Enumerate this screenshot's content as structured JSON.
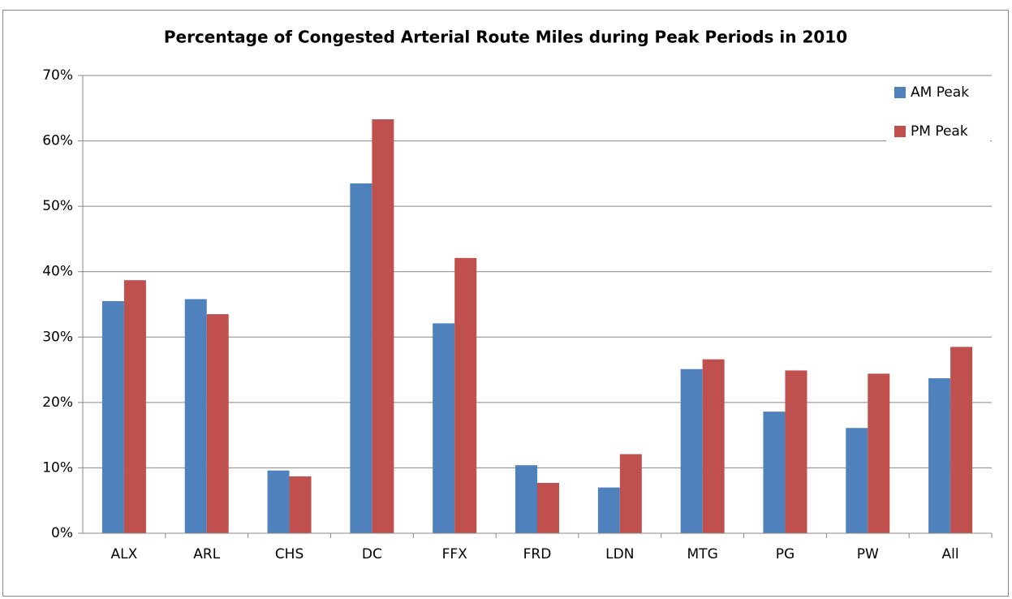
{
  "chart_data": {
    "type": "bar",
    "title": "Percentage of Congested Arterial Route Miles during Peak Periods in 2010",
    "categories": [
      "ALX",
      "ARL",
      "CHS",
      "DC",
      "FFX",
      "FRD",
      "LDN",
      "MTG",
      "PG",
      "PW",
      "All"
    ],
    "series": [
      {
        "name": "AM Peak",
        "color": "#4f81bd",
        "values": [
          35.5,
          35.8,
          9.6,
          53.5,
          32.1,
          10.4,
          7.0,
          25.1,
          18.6,
          16.1,
          23.7
        ]
      },
      {
        "name": "PM Peak",
        "color": "#c0504d",
        "values": [
          38.7,
          33.5,
          8.7,
          63.3,
          42.1,
          7.7,
          12.1,
          26.6,
          24.9,
          24.4,
          28.5
        ]
      }
    ],
    "ylim": [
      0,
      70
    ],
    "yticks": [
      {
        "value": 0,
        "label": "0%"
      },
      {
        "value": 10,
        "label": "10%"
      },
      {
        "value": 20,
        "label": "20%"
      },
      {
        "value": 30,
        "label": "30%"
      },
      {
        "value": 40,
        "label": "40%"
      },
      {
        "value": 50,
        "label": "50%"
      },
      {
        "value": 60,
        "label": "60%"
      },
      {
        "value": 70,
        "label": "70%"
      }
    ],
    "grid": true,
    "legend": "top-right"
  }
}
